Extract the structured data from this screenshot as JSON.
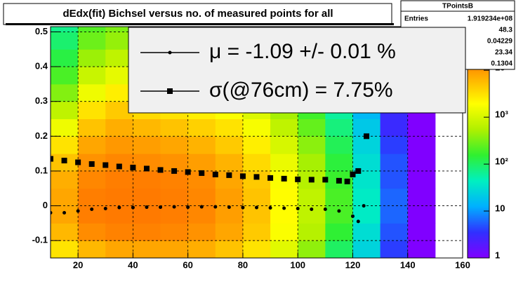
{
  "chart_data": {
    "type": "heatmap",
    "title": "dEdx(fit) Bichsel versus no. of measured points for all",
    "xlim": [
      10,
      160
    ],
    "ylim": [
      -0.15,
      0.515
    ],
    "xticks": [
      20,
      40,
      60,
      80,
      100,
      120,
      140,
      160
    ],
    "yticks": [
      -0.1,
      0,
      0.1,
      0.2,
      0.3,
      0.4,
      0.5
    ],
    "grid": true,
    "zlim": [
      1,
      85000
    ],
    "zlog": true,
    "zticks": [
      1,
      10,
      {
        "value": 100,
        "label": "10²"
      },
      {
        "value": 1000,
        "label": "10³"
      },
      {
        "value": 10000,
        "label": "10⁴"
      }
    ],
    "palette": [
      "#8000ff",
      "#3030ff",
      "#00b0ff",
      "#00f0c0",
      "#30f030",
      "#b0f000",
      "#ffff00",
      "#ffb000",
      "#ff6000",
      "#ff2000"
    ],
    "heatmap": {
      "xbins": [
        10,
        20,
        30,
        40,
        50,
        60,
        70,
        80,
        90,
        100,
        110,
        120,
        130,
        140,
        150,
        160
      ],
      "ybins": [
        -0.15,
        -0.1,
        -0.05,
        0,
        0.05,
        0.1,
        0.15,
        0.2,
        0.25,
        0.3,
        0.35,
        0.4,
        0.45,
        0.5,
        0.55
      ],
      "z": [
        [
          3000,
          6000,
          8000,
          8000,
          8000,
          7000,
          5000,
          3000,
          1200,
          400,
          100,
          25,
          4,
          1,
          0
        ],
        [
          6000,
          12000,
          14000,
          14000,
          13000,
          11000,
          8000,
          4500,
          1800,
          600,
          150,
          30,
          5,
          1,
          0
        ],
        [
          8000,
          15000,
          16000,
          16000,
          15000,
          13000,
          9000,
          5000,
          2000,
          700,
          200,
          40,
          6,
          1,
          0
        ],
        [
          8000,
          15000,
          16000,
          16000,
          15000,
          13000,
          9000,
          5000,
          2000,
          700,
          200,
          40,
          6,
          1,
          0
        ],
        [
          7000,
          13000,
          15000,
          15000,
          14000,
          12000,
          8000,
          4500,
          1800,
          600,
          170,
          35,
          5,
          1,
          0
        ],
        [
          5000,
          11000,
          13000,
          12000,
          11000,
          9000,
          6500,
          3500,
          1400,
          500,
          140,
          30,
          5,
          1,
          0
        ],
        [
          3000,
          8000,
          10000,
          9000,
          8000,
          6500,
          4500,
          2500,
          1000,
          380,
          110,
          25,
          4,
          1,
          0
        ],
        [
          1500,
          5000,
          7000,
          6000,
          5000,
          4000,
          3000,
          1700,
          700,
          260,
          80,
          20,
          3,
          1,
          0
        ],
        [
          700,
          3000,
          4500,
          3500,
          3000,
          2500,
          1800,
          1100,
          500,
          180,
          60,
          15,
          3,
          1,
          0
        ],
        [
          350,
          1500,
          2500,
          2000,
          1700,
          1500,
          1100,
          700,
          330,
          130,
          45,
          12,
          2,
          1,
          0
        ],
        [
          200,
          800,
          1300,
          1100,
          1000,
          900,
          700,
          450,
          220,
          90,
          35,
          10,
          2,
          1,
          0
        ],
        [
          130,
          450,
          700,
          650,
          600,
          550,
          450,
          300,
          150,
          65,
          25,
          8,
          2,
          1,
          0
        ],
        [
          90,
          280,
          420,
          400,
          380,
          350,
          300,
          200,
          110,
          50,
          20,
          6,
          2,
          0,
          0
        ],
        [
          70,
          220,
          330,
          320,
          300,
          280,
          240,
          160,
          90,
          40,
          16,
          5,
          1,
          0,
          0
        ]
      ]
    },
    "series": [
      {
        "name": "μ  = -1.09 +/-  0.01 %",
        "color": "#000000",
        "marker": "circle",
        "x": [
          10,
          15,
          20,
          25,
          30,
          35,
          40,
          45,
          50,
          55,
          60,
          65,
          70,
          75,
          80,
          85,
          90,
          95,
          100,
          105,
          110,
          115,
          120,
          122,
          124
        ],
        "values": [
          -0.02,
          -0.02,
          -0.015,
          -0.01,
          -0.008,
          -0.005,
          -0.005,
          -0.004,
          -0.004,
          -0.003,
          -0.004,
          -0.003,
          -0.003,
          -0.004,
          -0.005,
          -0.005,
          -0.006,
          -0.007,
          -0.008,
          -0.01,
          -0.01,
          -0.015,
          -0.03,
          -0.045,
          0
        ]
      },
      {
        "name": "σ(@76cm) =  7.75%",
        "color": "#000000",
        "marker": "square",
        "x": [
          10,
          15,
          20,
          25,
          30,
          35,
          40,
          45,
          50,
          55,
          60,
          65,
          70,
          75,
          80,
          85,
          90,
          95,
          100,
          105,
          110,
          115,
          118,
          120,
          122,
          125
        ],
        "values": [
          0.135,
          0.13,
          0.125,
          0.12,
          0.117,
          0.113,
          0.11,
          0.107,
          0.103,
          0.1,
          0.097,
          0.094,
          0.09,
          0.088,
          0.085,
          0.083,
          0.08,
          0.078,
          0.076,
          0.075,
          0.075,
          0.072,
          0.07,
          0.09,
          0.1,
          0.2
        ]
      }
    ],
    "stats": {
      "title": "TPointsB",
      "entries_label": "Entries",
      "entries": "1.919234e+08",
      "values": [
        48.3,
        0.04229,
        23.34,
        0.1304
      ]
    }
  }
}
